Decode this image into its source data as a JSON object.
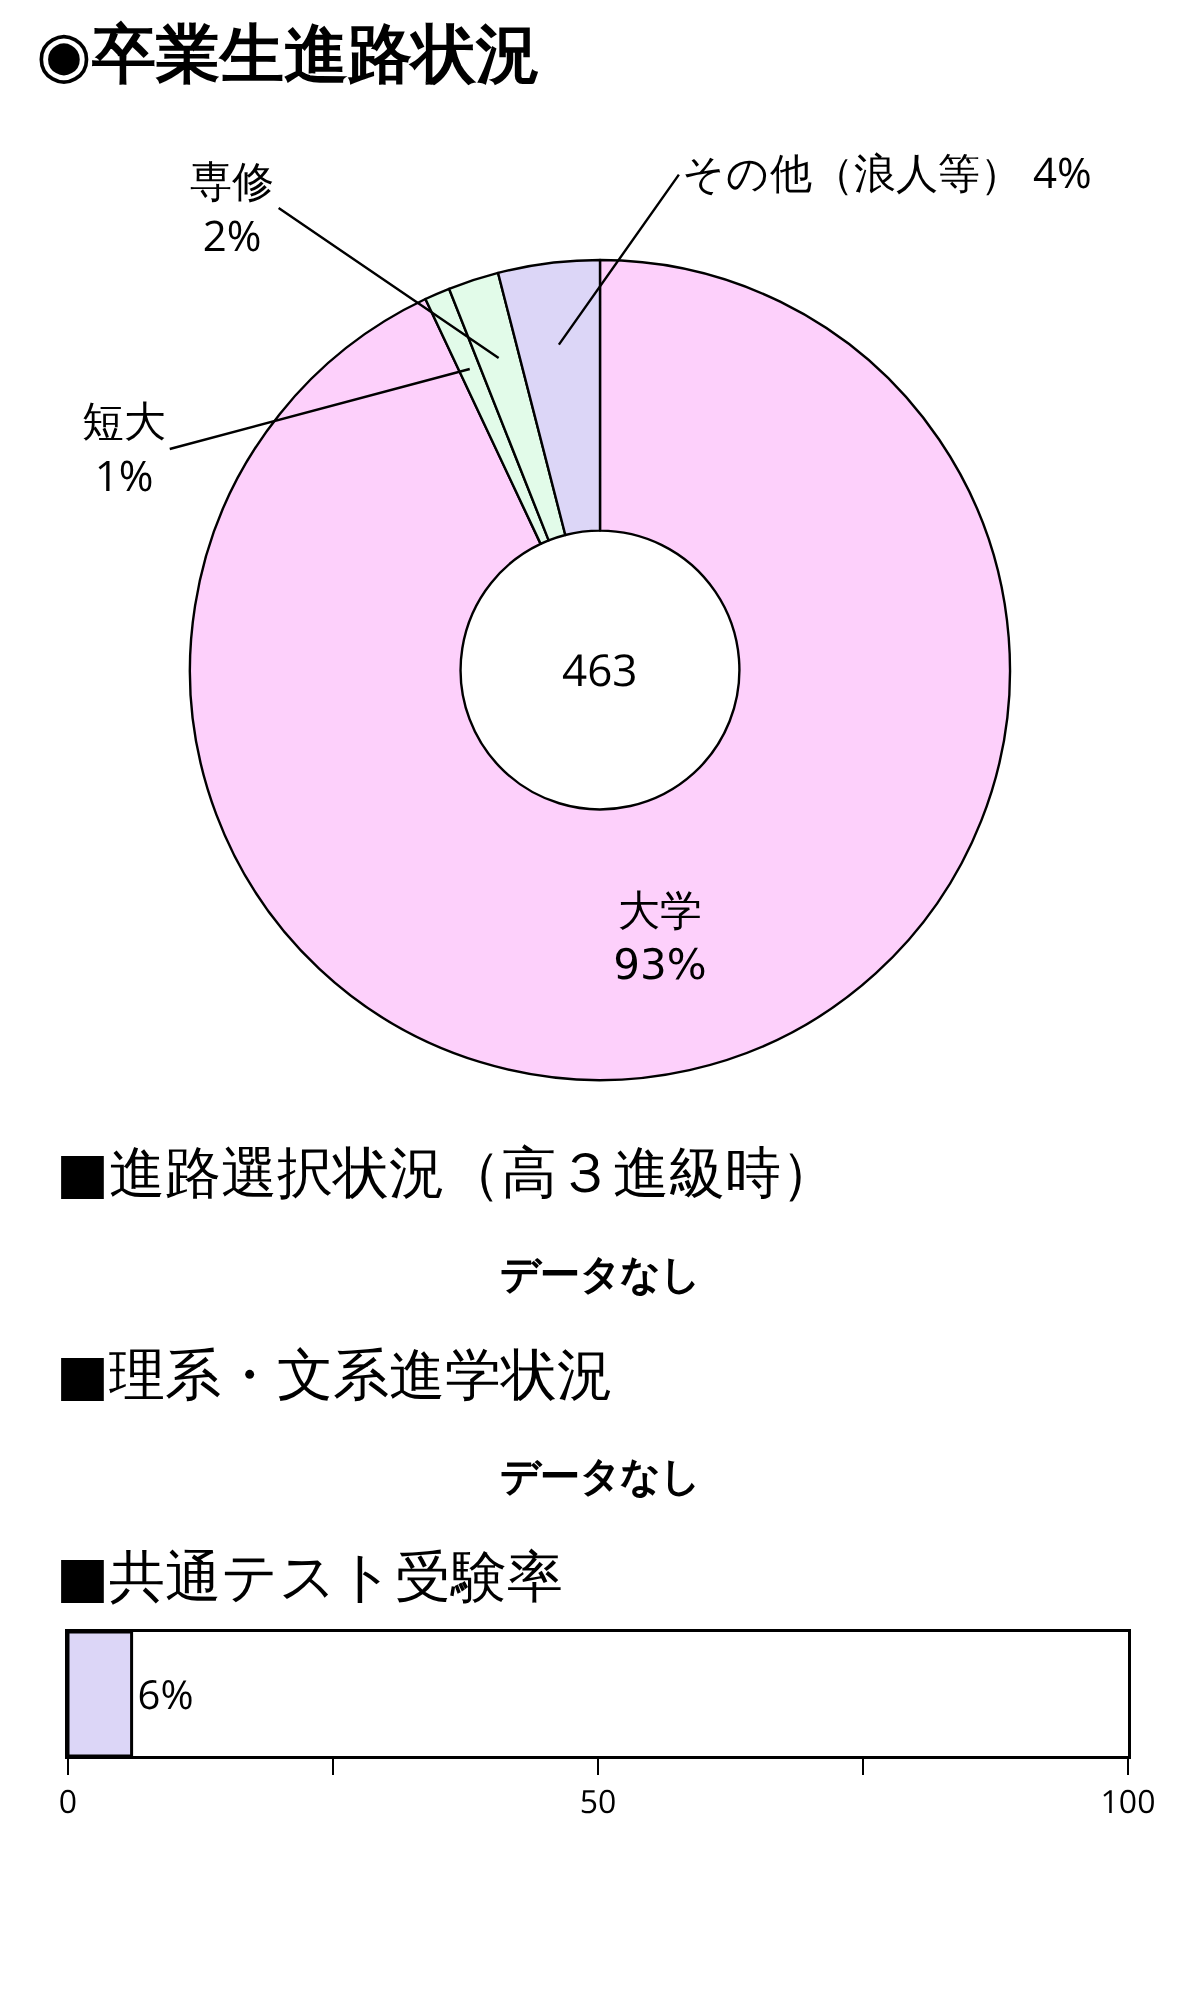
{
  "chart_data": [
    {
      "type": "donut",
      "title": "◉卒業生進路状況",
      "categories": [
        "大学",
        "短大",
        "専修",
        "その他（浪人等）"
      ],
      "values": [
        93,
        1,
        2,
        4
      ],
      "value_labels": [
        "93%",
        "1%",
        "2%",
        "4%"
      ],
      "colors": [
        "#fdd0fb",
        "#e2fbe9",
        "#e2fbe9",
        "#dcd6f7"
      ],
      "annotations": [
        "463"
      ],
      "legend": false
    },
    {
      "type": "other",
      "title": "■進路選択状況（高３進級時）",
      "annotations": [
        "データなし"
      ]
    },
    {
      "type": "other",
      "title": "■理系・文系進学状況",
      "annotations": [
        "データなし"
      ]
    },
    {
      "type": "bar",
      "orientation": "horizontal",
      "title": "■共通テスト受験率",
      "categories": [
        null
      ],
      "values": [
        6
      ],
      "value_labels": [
        "6%"
      ],
      "color": "#dcd6f7",
      "xlim": [
        0,
        100
      ],
      "xticks": [
        0,
        {
          "value": 25,
          "label": null
        },
        50,
        {
          "value": 75,
          "label": null
        },
        100
      ],
      "grid": false,
      "legend": false
    }
  ]
}
